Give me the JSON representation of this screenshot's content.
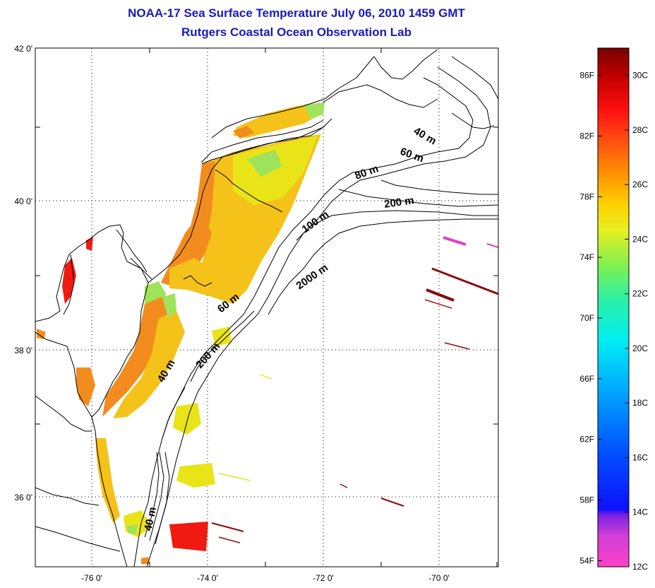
{
  "header": {
    "title": "NOAA-17 Sea Surface Temperature July 06, 2010 1459 GMT",
    "subtitle": "Rutgers Coastal Ocean Observation Lab"
  },
  "map": {
    "lat_labels": [
      "42 0'",
      "40 0'",
      "38 0'",
      "36 0'"
    ],
    "lon_labels": [
      "-76 0'",
      "-74 0'",
      "-72 0'",
      "-70 0'"
    ],
    "contour_labels": [
      "40 m",
      "60 m",
      "80 m",
      "200 m",
      "100 m",
      "2000 m",
      "60 m",
      "200 m",
      "40 m",
      "40 m"
    ],
    "colors": {
      "land_outline": "#000000",
      "orange": "#f28c1e",
      "yellow_orange": "#f5c21a",
      "yellow": "#e8e418",
      "green": "#9ee35a",
      "red": "#f01a12",
      "dark_red": "#8a0a0a",
      "pink": "#e040c0"
    }
  },
  "colorbar": {
    "f_labels": [
      "86F",
      "82F",
      "78F",
      "74F",
      "70F",
      "66F",
      "62F",
      "58F",
      "54F"
    ],
    "c_labels": [
      "30C",
      "28C",
      "26C",
      "24C",
      "22C",
      "20C",
      "18C",
      "16C",
      "14C",
      "12C"
    ],
    "range_c": [
      12,
      31
    ]
  }
}
